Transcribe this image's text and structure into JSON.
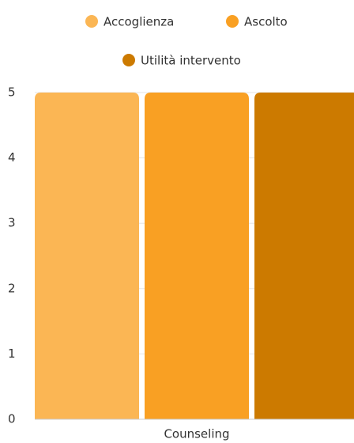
{
  "chart_data": {
    "type": "bar",
    "categories": [
      "Counseling"
    ],
    "series": [
      {
        "name": "Accoglienza",
        "color": "#fbb654",
        "values": [
          5
        ]
      },
      {
        "name": "Ascolto",
        "color": "#f9a023",
        "values": [
          5
        ]
      },
      {
        "name": "Utilità intervento",
        "color": "#cc7a00",
        "values": [
          5
        ]
      }
    ],
    "ylim": [
      0,
      5
    ],
    "yticks": [
      0,
      1,
      2,
      3,
      4,
      5
    ],
    "grid": true,
    "legend": "top"
  }
}
